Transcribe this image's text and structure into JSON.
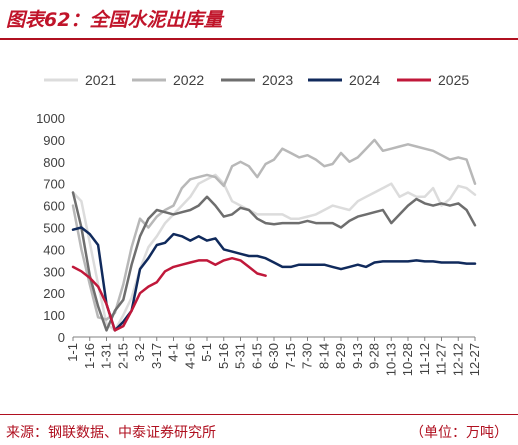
{
  "header": {
    "title": "图表62：全国水泥出库量"
  },
  "footer": {
    "source": "来源：钢联数据、中泰证券研究所",
    "unit": "（单位：万吨）"
  },
  "chart_data": {
    "type": "line",
    "title": "",
    "xlabel": "",
    "ylabel": "",
    "ylim": [
      0,
      1000
    ],
    "yticks": [
      "0",
      "100",
      "200",
      "300",
      "400",
      "500",
      "600",
      "700",
      "800",
      "900",
      "1000"
    ],
    "grid": false,
    "legend": "top",
    "categories": [
      "1-1",
      "1-16",
      "1-31",
      "2-15",
      "3-2",
      "3-17",
      "4-1",
      "4-16",
      "5-1",
      "5-16",
      "5-31",
      "6-15",
      "6-30",
      "7-15",
      "7-30",
      "8-14",
      "8-29",
      "9-13",
      "9-28",
      "10-13",
      "10-28",
      "11-12",
      "11-27",
      "12-12",
      "12-27"
    ],
    "series": [
      {
        "name": "2021",
        "color": "#dcdcdc",
        "values": [
          [
            0,
            660
          ],
          [
            0.5,
            620
          ],
          [
            1,
            430
          ],
          [
            1.5,
            240
          ],
          [
            2,
            60
          ],
          [
            2.5,
            30
          ],
          [
            3,
            100
          ],
          [
            3.5,
            180
          ],
          [
            4,
            310
          ],
          [
            4.5,
            410
          ],
          [
            5,
            460
          ],
          [
            5.5,
            520
          ],
          [
            6,
            560
          ],
          [
            6.5,
            600
          ],
          [
            7,
            640
          ],
          [
            7.5,
            700
          ],
          [
            8,
            720
          ],
          [
            8.5,
            740
          ],
          [
            9,
            700
          ],
          [
            9.5,
            620
          ],
          [
            10,
            600
          ],
          [
            10.5,
            580
          ],
          [
            11,
            560
          ],
          [
            11.5,
            560
          ],
          [
            12,
            560
          ],
          [
            12.5,
            560
          ],
          [
            13,
            540
          ],
          [
            13.5,
            540
          ],
          [
            14,
            550
          ],
          [
            14.5,
            560
          ],
          [
            15,
            580
          ],
          [
            15.5,
            600
          ],
          [
            16,
            590
          ],
          [
            16.5,
            580
          ],
          [
            17,
            620
          ],
          [
            17.5,
            640
          ],
          [
            18,
            660
          ],
          [
            18.5,
            680
          ],
          [
            19,
            700
          ],
          [
            19.5,
            640
          ],
          [
            20,
            660
          ],
          [
            20.5,
            640
          ],
          [
            21,
            640
          ],
          [
            21.5,
            680
          ],
          [
            22,
            600
          ],
          [
            22.5,
            630
          ],
          [
            23,
            690
          ],
          [
            23.5,
            680
          ],
          [
            24,
            650
          ]
        ]
      },
      {
        "name": "2022",
        "color": "#b8b8b8",
        "values": [
          [
            0,
            600
          ],
          [
            0.5,
            400
          ],
          [
            1,
            240
          ],
          [
            1.5,
            90
          ],
          [
            2,
            80
          ],
          [
            2.5,
            110
          ],
          [
            3,
            240
          ],
          [
            3.5,
            410
          ],
          [
            4,
            540
          ],
          [
            4.5,
            500
          ],
          [
            5,
            550
          ],
          [
            5.5,
            580
          ],
          [
            6,
            600
          ],
          [
            6.5,
            680
          ],
          [
            7,
            720
          ],
          [
            7.5,
            730
          ],
          [
            8,
            740
          ],
          [
            8.5,
            730
          ],
          [
            9,
            690
          ],
          [
            9.5,
            780
          ],
          [
            10,
            800
          ],
          [
            10.5,
            780
          ],
          [
            11,
            730
          ],
          [
            11.5,
            790
          ],
          [
            12,
            810
          ],
          [
            12.5,
            860
          ],
          [
            13,
            840
          ],
          [
            13.5,
            820
          ],
          [
            14,
            830
          ],
          [
            14.5,
            810
          ],
          [
            15,
            780
          ],
          [
            15.5,
            790
          ],
          [
            16,
            840
          ],
          [
            16.5,
            800
          ],
          [
            17,
            820
          ],
          [
            17.5,
            860
          ],
          [
            18,
            900
          ],
          [
            18.5,
            850
          ],
          [
            19,
            860
          ],
          [
            19.5,
            870
          ],
          [
            20,
            880
          ],
          [
            20.5,
            870
          ],
          [
            21,
            860
          ],
          [
            21.5,
            850
          ],
          [
            22,
            830
          ],
          [
            22.5,
            810
          ],
          [
            23,
            820
          ],
          [
            23.5,
            810
          ],
          [
            24,
            700
          ]
        ]
      },
      {
        "name": "2023",
        "color": "#6e6e6e",
        "values": [
          [
            0,
            660
          ],
          [
            0.5,
            500
          ],
          [
            1,
            280
          ],
          [
            1.5,
            140
          ],
          [
            2,
            30
          ],
          [
            2.5,
            120
          ],
          [
            3,
            170
          ],
          [
            3.5,
            330
          ],
          [
            4,
            460
          ],
          [
            4.5,
            540
          ],
          [
            5,
            580
          ],
          [
            5.5,
            570
          ],
          [
            6,
            560
          ],
          [
            6.5,
            570
          ],
          [
            7,
            580
          ],
          [
            7.5,
            600
          ],
          [
            8,
            640
          ],
          [
            8.5,
            600
          ],
          [
            9,
            550
          ],
          [
            9.5,
            560
          ],
          [
            10,
            590
          ],
          [
            10.5,
            580
          ],
          [
            11,
            540
          ],
          [
            11.5,
            520
          ],
          [
            12,
            515
          ],
          [
            12.5,
            520
          ],
          [
            13,
            520
          ],
          [
            13.5,
            520
          ],
          [
            14,
            530
          ],
          [
            14.5,
            520
          ],
          [
            15,
            520
          ],
          [
            15.5,
            520
          ],
          [
            16,
            500
          ],
          [
            16.5,
            530
          ],
          [
            17,
            550
          ],
          [
            17.5,
            560
          ],
          [
            18,
            570
          ],
          [
            18.5,
            580
          ],
          [
            19,
            520
          ],
          [
            19.5,
            560
          ],
          [
            20,
            600
          ],
          [
            20.5,
            630
          ],
          [
            21,
            610
          ],
          [
            21.5,
            600
          ],
          [
            22,
            610
          ],
          [
            22.5,
            600
          ],
          [
            23,
            610
          ],
          [
            23.5,
            580
          ],
          [
            24,
            510
          ]
        ]
      },
      {
        "name": "2024",
        "color": "#102a5c",
        "values": [
          [
            0,
            490
          ],
          [
            0.5,
            500
          ],
          [
            1,
            470
          ],
          [
            1.5,
            420
          ],
          [
            2,
            150
          ],
          [
            2.5,
            30
          ],
          [
            3,
            70
          ],
          [
            3.5,
            120
          ],
          [
            4,
            310
          ],
          [
            4.5,
            360
          ],
          [
            5,
            420
          ],
          [
            5.5,
            430
          ],
          [
            6,
            470
          ],
          [
            6.5,
            460
          ],
          [
            7,
            440
          ],
          [
            7.5,
            460
          ],
          [
            8,
            440
          ],
          [
            8.5,
            450
          ],
          [
            9,
            400
          ],
          [
            9.5,
            390
          ],
          [
            10,
            380
          ],
          [
            10.5,
            370
          ],
          [
            11,
            370
          ],
          [
            11.5,
            360
          ],
          [
            12,
            340
          ],
          [
            12.5,
            320
          ],
          [
            13,
            320
          ],
          [
            13.5,
            330
          ],
          [
            14,
            330
          ],
          [
            14.5,
            330
          ],
          [
            15,
            330
          ],
          [
            15.5,
            320
          ],
          [
            16,
            310
          ],
          [
            16.5,
            320
          ],
          [
            17,
            330
          ],
          [
            17.5,
            320
          ],
          [
            18,
            340
          ],
          [
            18.5,
            345
          ],
          [
            19,
            345
          ],
          [
            19.5,
            345
          ],
          [
            20,
            345
          ],
          [
            20.5,
            350
          ],
          [
            21,
            345
          ],
          [
            21.5,
            345
          ],
          [
            22,
            340
          ],
          [
            22.5,
            340
          ],
          [
            23,
            340
          ],
          [
            23.5,
            335
          ],
          [
            24,
            335
          ]
        ]
      },
      {
        "name": "2025",
        "color": "#c0183a",
        "values": [
          [
            0,
            320
          ],
          [
            0.5,
            300
          ],
          [
            1,
            270
          ],
          [
            1.5,
            230
          ],
          [
            2,
            150
          ],
          [
            2.5,
            30
          ],
          [
            3,
            50
          ],
          [
            3.5,
            120
          ],
          [
            4,
            200
          ],
          [
            4.5,
            230
          ],
          [
            5,
            250
          ],
          [
            5.5,
            300
          ],
          [
            6,
            320
          ],
          [
            6.5,
            330
          ],
          [
            7,
            340
          ],
          [
            7.5,
            350
          ],
          [
            8,
            350
          ],
          [
            8.5,
            330
          ],
          [
            9,
            350
          ],
          [
            9.5,
            360
          ],
          [
            10,
            350
          ],
          [
            10.5,
            320
          ],
          [
            11,
            290
          ],
          [
            11.5,
            280
          ]
        ]
      }
    ]
  }
}
